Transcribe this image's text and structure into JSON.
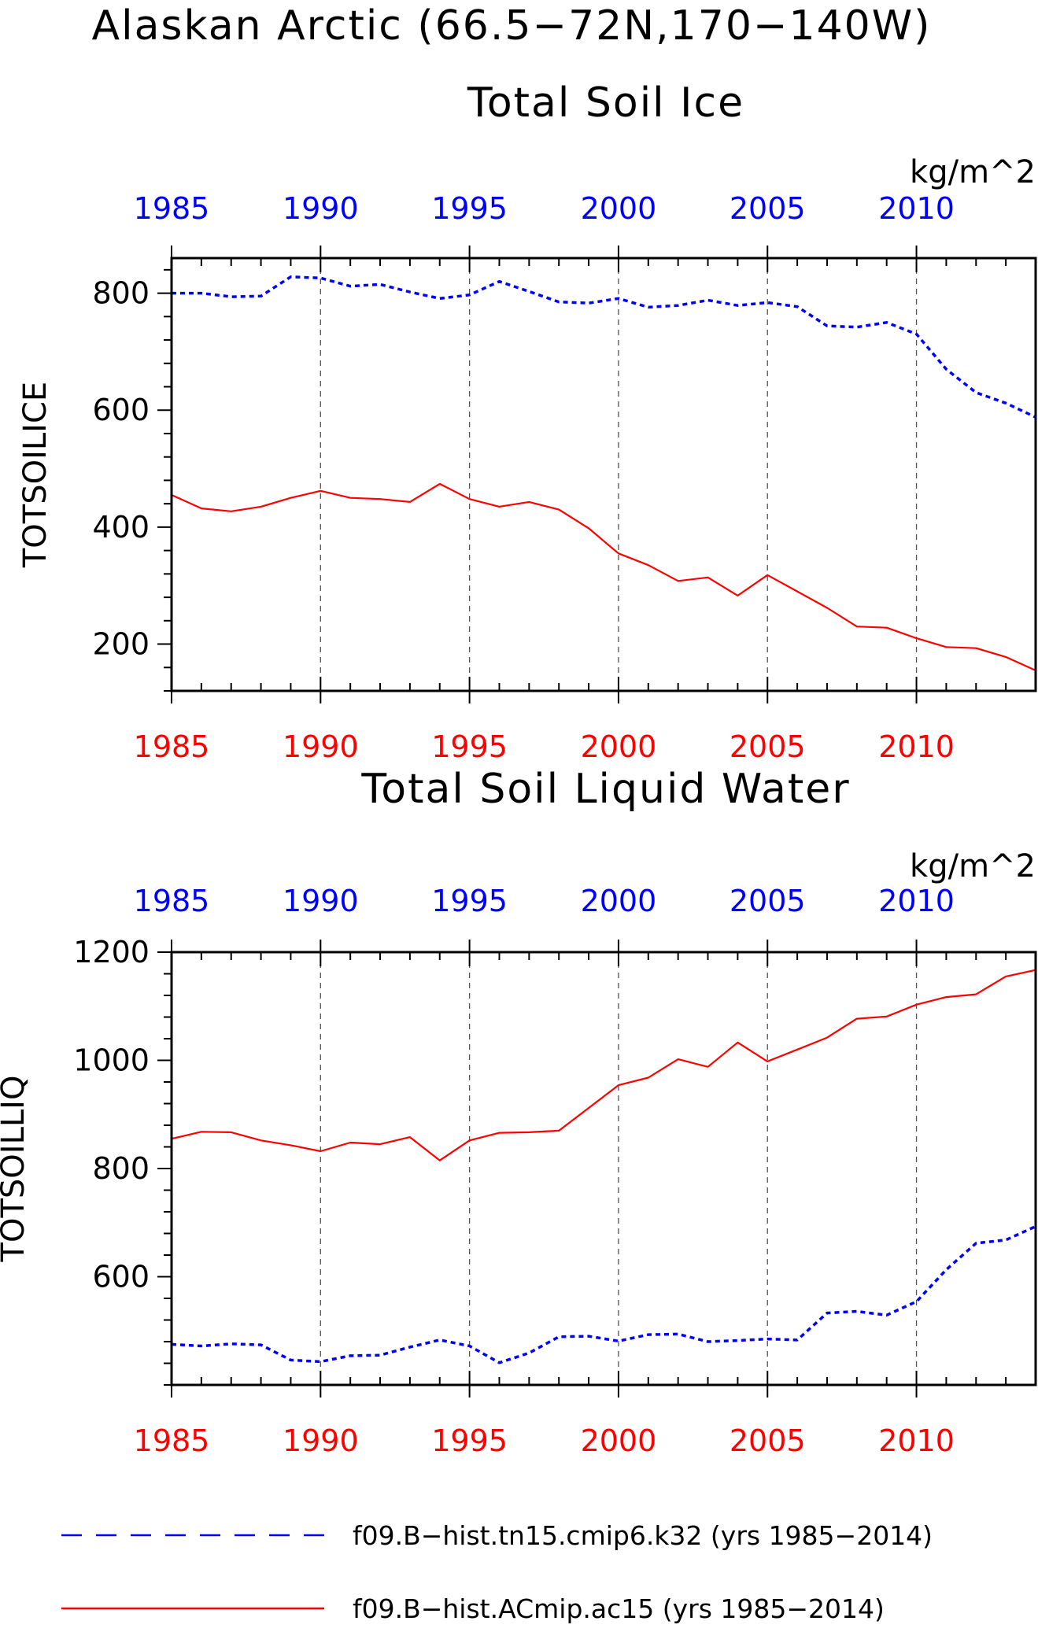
{
  "title": "Alaskan Arctic (66.5−72N,170−140W)",
  "colors": {
    "ctrl": "#0000ff",
    "exp": "#ff0000",
    "axis": "#000000"
  },
  "legend": [
    {
      "text": "f09.B−hist.tn15.cmip6.k32 (yrs 1985−2014)",
      "color": "#0000ff",
      "style": "dashed"
    },
    {
      "text": "f09.B−hist.ACmip.ac15 (yrs 1985−2014)",
      "color": "#ff0000",
      "style": "solid"
    }
  ],
  "chart_data": [
    {
      "type": "line",
      "title": "Total Soil Ice",
      "ylabel": "TOTSOILICE",
      "units": "kg/m^2",
      "xlim": [
        1985,
        2014
      ],
      "ylim": [
        120,
        860
      ],
      "yticks": [
        200,
        400,
        600,
        800
      ],
      "xticks": [
        1985,
        1990,
        1995,
        2000,
        2005,
        2010
      ],
      "grid": "vertical dashed",
      "x": [
        1985,
        1986,
        1987,
        1988,
        1989,
        1990,
        1991,
        1992,
        1993,
        1994,
        1995,
        1996,
        1997,
        1998,
        1999,
        2000,
        2001,
        2002,
        2003,
        2004,
        2005,
        2006,
        2007,
        2008,
        2009,
        2010,
        2011,
        2012,
        2013,
        2014
      ],
      "series": [
        {
          "name": "f09.B−hist.tn15.cmip6.k32",
          "color": "#0000ff",
          "style": "dashed",
          "values": [
            800,
            800,
            794,
            795,
            828,
            826,
            812,
            815,
            802,
            791,
            797,
            820,
            803,
            785,
            783,
            791,
            776,
            779,
            788,
            779,
            784,
            777,
            744,
            742,
            750,
            730,
            670,
            630,
            612,
            588
          ]
        },
        {
          "name": "f09.B−hist.ACmip.ac15",
          "color": "#ff0000",
          "style": "solid",
          "values": [
            455,
            432,
            427,
            435,
            450,
            462,
            450,
            448,
            443,
            474,
            448,
            435,
            443,
            430,
            398,
            355,
            335,
            308,
            314,
            283,
            318,
            290,
            262,
            230,
            228,
            210,
            195,
            193,
            178,
            155
          ]
        }
      ]
    },
    {
      "type": "line",
      "title": "Total Soil Liquid Water",
      "ylabel": "TOTSOILLIQ",
      "units": "kg/m^2",
      "xlim": [
        1985,
        2014
      ],
      "ylim": [
        400,
        1200
      ],
      "yticks": [
        600,
        800,
        1000,
        1200
      ],
      "xticks": [
        1985,
        1990,
        1995,
        2000,
        2005,
        2010
      ],
      "grid": "vertical dashed",
      "x": [
        1985,
        1986,
        1987,
        1988,
        1989,
        1990,
        1991,
        1992,
        1993,
        1994,
        1995,
        1996,
        1997,
        1998,
        1999,
        2000,
        2001,
        2002,
        2003,
        2004,
        2005,
        2006,
        2007,
        2008,
        2009,
        2010,
        2011,
        2012,
        2013,
        2014
      ],
      "series": [
        {
          "name": "f09.B−hist.tn15.cmip6.k32",
          "color": "#0000ff",
          "style": "dashed",
          "values": [
            475,
            472,
            476,
            474,
            446,
            443,
            454,
            455,
            470,
            483,
            472,
            441,
            459,
            489,
            490,
            481,
            493,
            494,
            480,
            482,
            485,
            483,
            533,
            536,
            529,
            554,
            613,
            662,
            668,
            693
          ]
        },
        {
          "name": "f09.B−hist.ACmip.ac15",
          "color": "#ff0000",
          "style": "solid",
          "values": [
            855,
            868,
            867,
            852,
            843,
            832,
            848,
            845,
            858,
            815,
            852,
            866,
            867,
            870,
            912,
            954,
            968,
            1002,
            988,
            1033,
            998,
            1020,
            1042,
            1077,
            1081,
            1103,
            1117,
            1122,
            1155,
            1167
          ]
        }
      ]
    }
  ]
}
